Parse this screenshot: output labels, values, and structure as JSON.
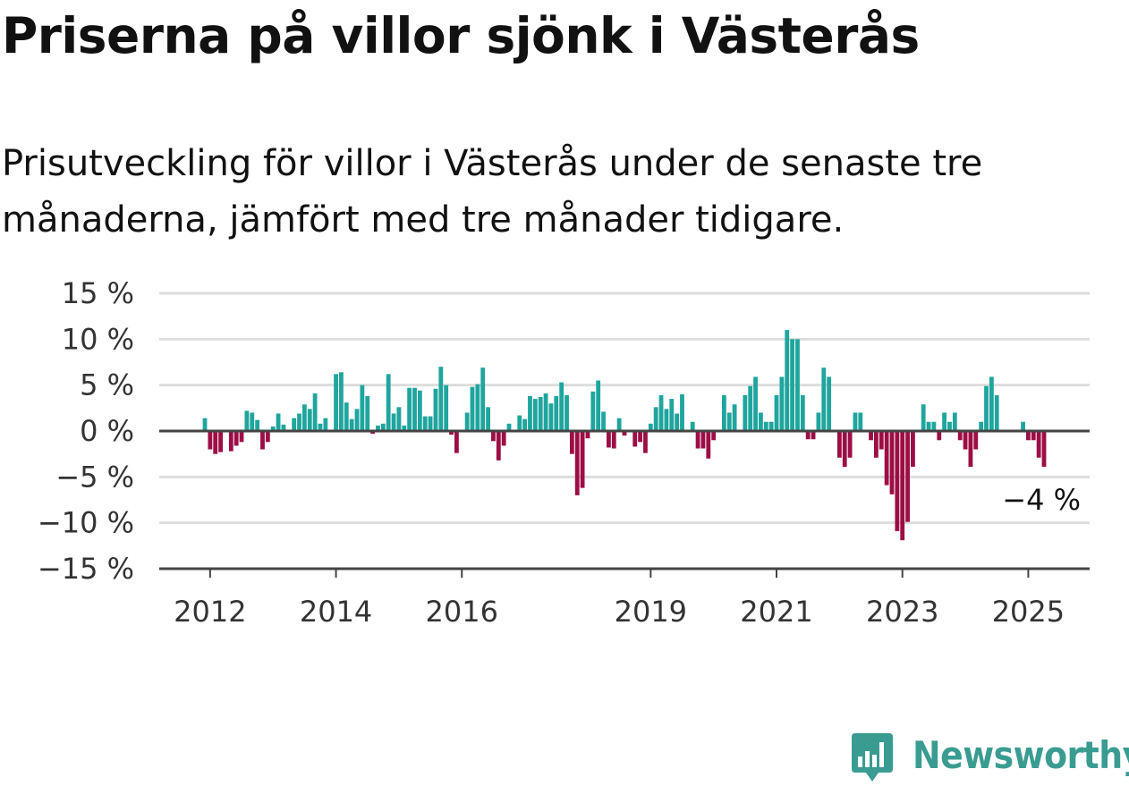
{
  "title": "Priserna på villor sjönk i Västerås",
  "subtitle": "Prisutveckling för villor i Västerås under de senaste tre månaderna, jämfört med tre månader tidigare.",
  "brand": {
    "name": "Newsworthy",
    "color": "#3a9c91",
    "icon": "bar-chart-speech-bubble-icon"
  },
  "chart_data": {
    "type": "bar",
    "xlabel": "",
    "ylabel": "",
    "ylim": [
      -15,
      15
    ],
    "yticks": [
      15,
      10,
      5,
      0,
      -5,
      -10,
      -15
    ],
    "ytick_labels": [
      "15 %",
      "10 %",
      "5 %",
      "0 %",
      "−5 %",
      "−10 %",
      "−15 %"
    ],
    "x_start": "2011-12",
    "x_end": "2025-04",
    "xtick_labels": [
      {
        "label": "2012",
        "date": "2012-01"
      },
      {
        "label": "2014",
        "date": "2014-01"
      },
      {
        "label": "2016",
        "date": "2016-01"
      },
      {
        "label": "2019",
        "date": "2019-01"
      },
      {
        "label": "2021",
        "date": "2021-01"
      },
      {
        "label": "2023",
        "date": "2023-01"
      },
      {
        "label": "2025",
        "date": "2025-01"
      }
    ],
    "colors": {
      "positive": "#1fa59e",
      "negative": "#9c0e45",
      "grid": "#dddddd",
      "axis": "#444444"
    },
    "grid": true,
    "annotation": {
      "text": "−4 %",
      "date": "2025-01",
      "value": -4
    },
    "series": [
      {
        "values": [
          1.4,
          -2.0,
          -2.5,
          -2.3,
          0,
          -2.2,
          -1.6,
          -1.2,
          2.2,
          2.0,
          1.2,
          -2.0,
          -1.2,
          0.5,
          1.9,
          0.7,
          0,
          1.4,
          1.9,
          2.9,
          2.4,
          4.1,
          0.8,
          1.4,
          0,
          6.2,
          6.4,
          3.1,
          1.3,
          2.4,
          5.0,
          3.8,
          -0.3,
          0.6,
          0.8,
          6.2,
          1.9,
          2.6,
          0.6,
          4.7,
          4.7,
          4.4,
          1.6,
          1.6,
          4.6,
          7.0,
          5.0,
          -0.4,
          -2.4,
          0,
          2.0,
          4.8,
          5.1,
          6.9,
          2.6,
          -1.1,
          -3.2,
          -1.6,
          0.8,
          0,
          1.7,
          1.3,
          3.8,
          3.5,
          3.7,
          4.1,
          3.0,
          3.8,
          5.3,
          3.9,
          -2.5,
          -7.0,
          -6.2,
          -0.8,
          4.3,
          5.5,
          2.1,
          -1.8,
          -1.9,
          1.4,
          -0.5,
          0,
          -1.7,
          -1.2,
          -2.4,
          0.8,
          2.6,
          3.9,
          2.4,
          3.5,
          1.9,
          4.0,
          0,
          1.0,
          -1.9,
          -1.9,
          -3.0,
          -1.0,
          0,
          3.9,
          2.0,
          2.9,
          0,
          3.9,
          4.9,
          5.9,
          2.0,
          1.0,
          1.0,
          3.9,
          5.9,
          11.0,
          10.0,
          10.0,
          3.9,
          -0.9,
          -0.9,
          2.0,
          6.9,
          5.9,
          0,
          -2.9,
          -3.9,
          -2.9,
          2.0,
          2.0,
          0,
          -1.0,
          -2.9,
          -2.0,
          -5.9,
          -6.9,
          -10.9,
          -11.9,
          -9.9,
          -3.9,
          0,
          2.9,
          1.0,
          1.0,
          -1.0,
          2.0,
          1.0,
          2.0,
          -1.0,
          -2.0,
          -3.9,
          -2.0,
          1.0,
          4.9,
          5.9,
          3.9,
          0,
          0,
          0,
          0,
          1.0,
          -1.0,
          -1.0,
          -2.9,
          -3.9
        ]
      }
    ]
  }
}
